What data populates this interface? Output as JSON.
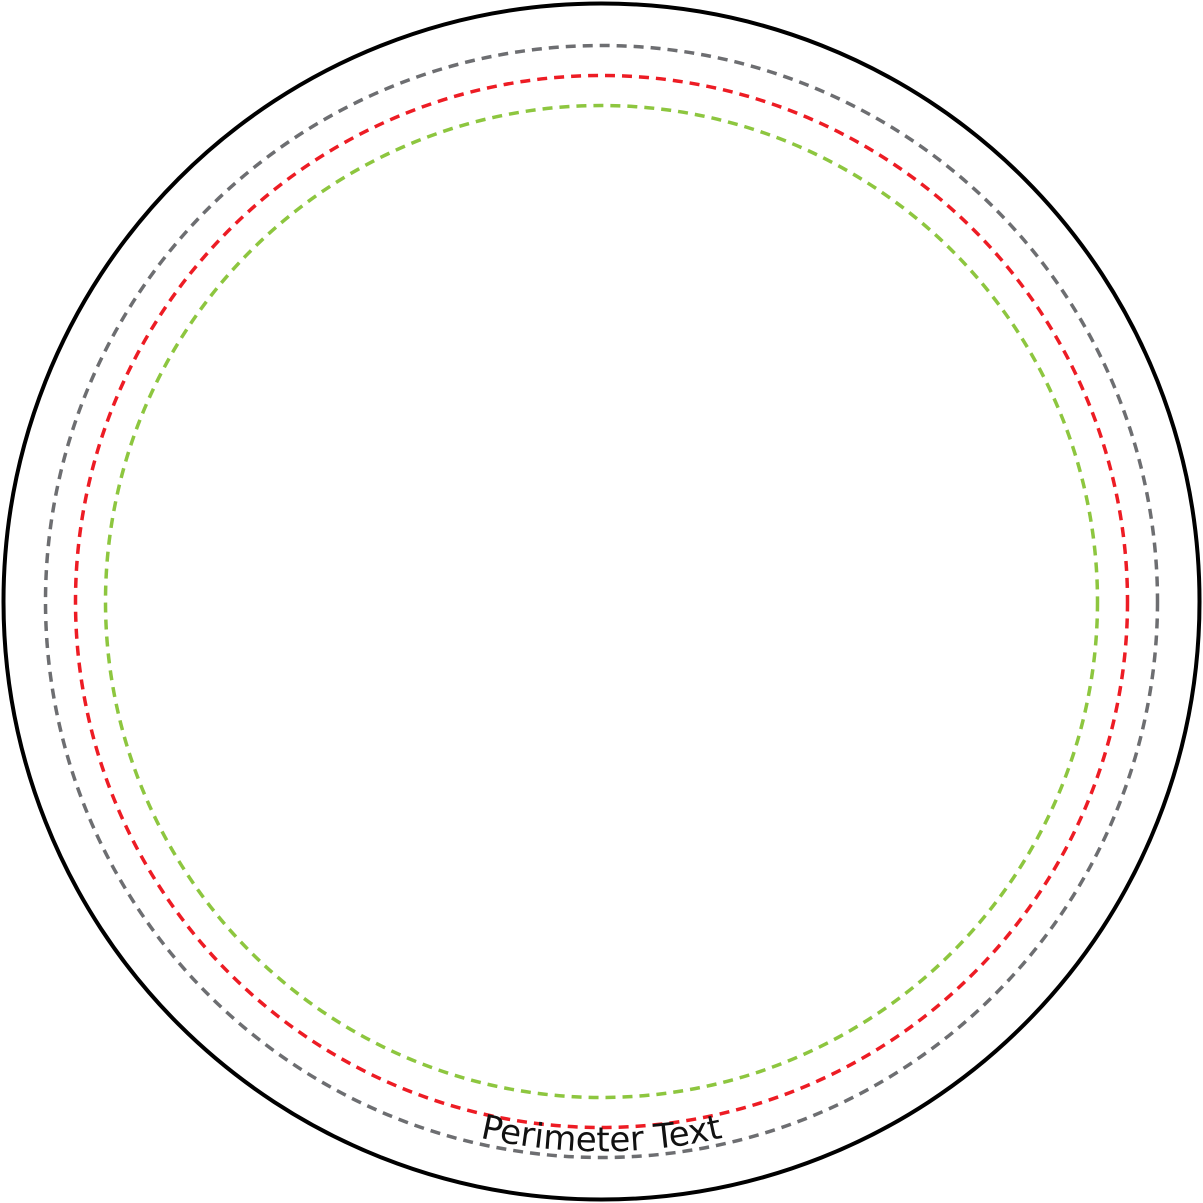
{
  "diagram": {
    "perimeter_text": "Perimeter Text",
    "rings": [
      {
        "name": "outer-boundary",
        "color": "#000000",
        "style": "solid"
      },
      {
        "name": "gray-ring",
        "color": "#6d6e71",
        "style": "dashed"
      },
      {
        "name": "red-ring",
        "color": "#ed1c24",
        "style": "dashed"
      },
      {
        "name": "green-ring",
        "color": "#8dc63f",
        "style": "dashed"
      }
    ]
  }
}
